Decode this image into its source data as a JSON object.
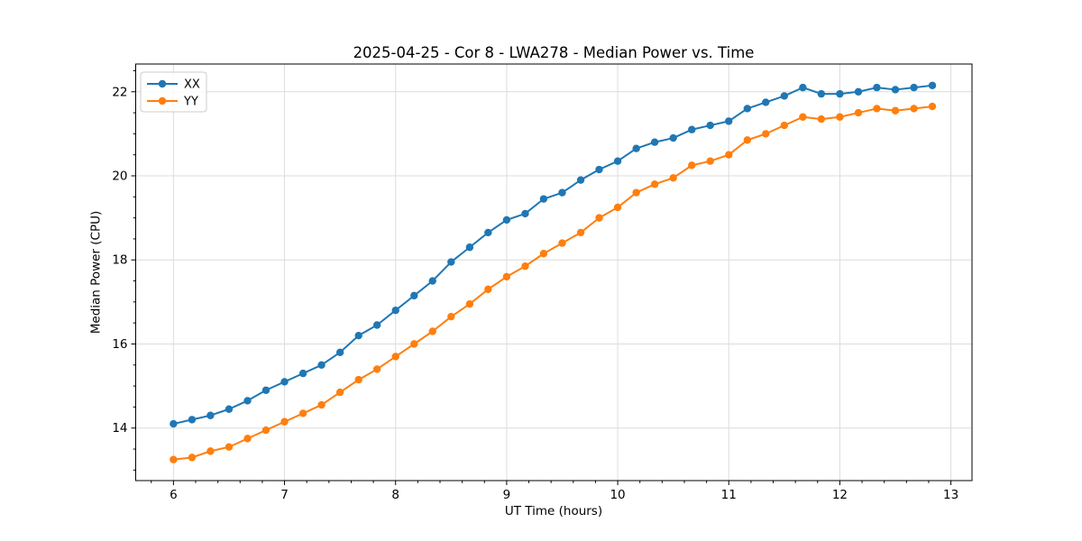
{
  "chart_data": {
    "type": "line",
    "title": "2025-04-25 - Cor 8 - LWA278 - Median Power vs. Time",
    "xlabel": "UT Time (hours)",
    "ylabel": "Median Power (CPU)",
    "xlim": [
      5.66,
      13.19
    ],
    "ylim": [
      12.75,
      22.66
    ],
    "xticks": [
      6,
      7,
      8,
      9,
      10,
      11,
      12,
      13
    ],
    "yticks": [
      14,
      16,
      18,
      20,
      22
    ],
    "x_minor_step": 0.2,
    "y_minor_step": 0.5,
    "grid": true,
    "grid_color": "#dcdcdc",
    "legend_position": "upper left",
    "x": [
      6.0,
      6.167,
      6.333,
      6.5,
      6.667,
      6.833,
      7.0,
      7.167,
      7.333,
      7.5,
      7.667,
      7.833,
      8.0,
      8.167,
      8.333,
      8.5,
      8.667,
      8.833,
      9.0,
      9.167,
      9.333,
      9.5,
      9.667,
      9.833,
      10.0,
      10.167,
      10.333,
      10.5,
      10.667,
      10.833,
      11.0,
      11.167,
      11.333,
      11.5,
      11.667,
      11.833,
      12.0,
      12.167,
      12.333,
      12.5,
      12.667,
      12.833
    ],
    "series": [
      {
        "name": "XX",
        "color": "#1f77b4",
        "marker": "circle",
        "values": [
          14.1,
          14.2,
          14.3,
          14.45,
          14.65,
          14.9,
          15.1,
          15.3,
          15.5,
          15.8,
          16.2,
          16.45,
          16.8,
          17.15,
          17.5,
          17.95,
          18.3,
          18.65,
          18.95,
          19.1,
          19.45,
          19.6,
          19.9,
          20.15,
          20.35,
          20.65,
          20.8,
          20.9,
          21.1,
          21.2,
          21.3,
          21.6,
          21.75,
          21.9,
          22.1,
          21.95,
          21.95,
          22.0,
          22.1,
          22.05,
          22.1,
          22.15
        ]
      },
      {
        "name": "YY",
        "color": "#ff7f0e",
        "marker": "circle",
        "values": [
          13.25,
          13.3,
          13.45,
          13.55,
          13.75,
          13.95,
          14.15,
          14.35,
          14.55,
          14.85,
          15.15,
          15.4,
          15.7,
          16.0,
          16.3,
          16.65,
          16.95,
          17.3,
          17.6,
          17.85,
          18.15,
          18.4,
          18.65,
          19.0,
          19.25,
          19.6,
          19.8,
          19.95,
          20.25,
          20.35,
          20.5,
          20.85,
          21.0,
          21.2,
          21.4,
          21.35,
          21.4,
          21.5,
          21.6,
          21.55,
          21.6,
          21.65
        ]
      }
    ]
  }
}
